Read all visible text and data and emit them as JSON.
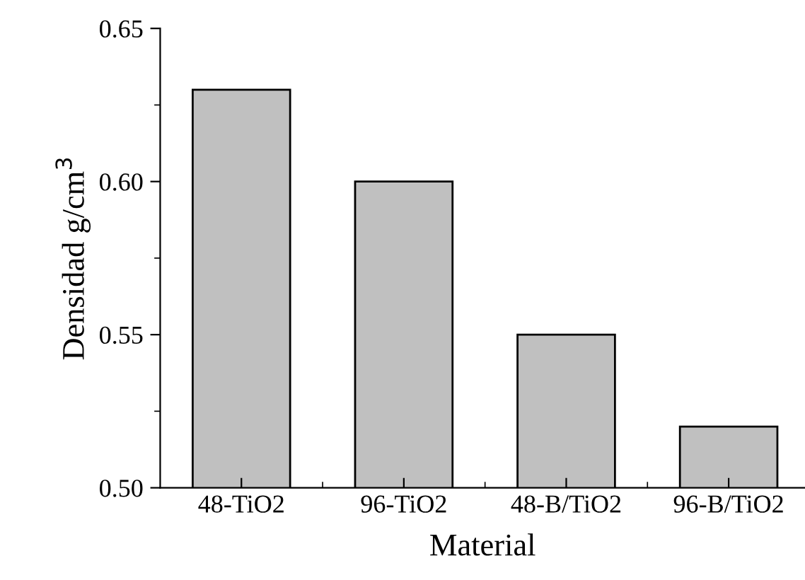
{
  "chart_data": {
    "type": "bar",
    "xlabel": "Material",
    "ylabel": "Densidad g/cm$^{3}$",
    "categories": [
      "48-TiO2",
      "96-TiO2",
      "48-B/TiO2",
      "96-B/TiO2"
    ],
    "values": [
      0.63,
      0.6,
      0.55,
      0.52
    ],
    "color": "#c0c0c0",
    "ylim": [
      0.5,
      0.65
    ],
    "yticks": [
      {
        "value": 0.5,
        "label": "0.50"
      },
      {
        "value": 0.525,
        "label": null
      },
      {
        "value": 0.55,
        "label": "0.55"
      },
      {
        "value": 0.575,
        "label": null
      },
      {
        "value": 0.6,
        "label": "0.60"
      },
      {
        "value": 0.625,
        "label": null
      },
      {
        "value": 0.65,
        "label": "0.65"
      }
    ],
    "grid": false,
    "legend": false
  }
}
